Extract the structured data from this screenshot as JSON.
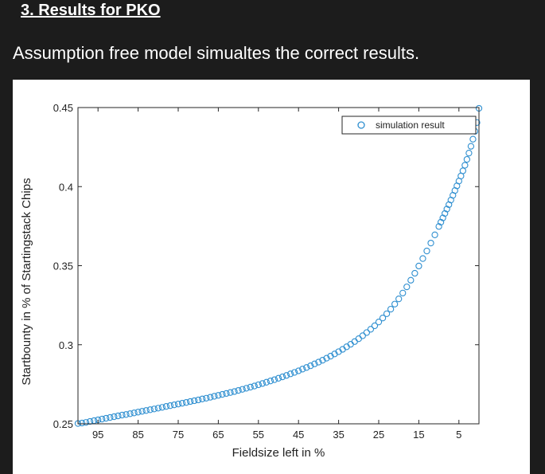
{
  "slide": {
    "title": "3. Results for PKO",
    "subtitle": "Assumption free model simualtes the correct results."
  },
  "colors": {
    "background": "#1c1c1c",
    "figure_background": "#ffffff",
    "marker": "#2f8fd0"
  },
  "chart_data": {
    "type": "scatter",
    "xlabel": "Fieldsize left in %",
    "ylabel": "Startbounty in % of Startingstack Chips",
    "xlim": [
      100,
      0
    ],
    "x_reversed": true,
    "ylim": [
      0.25,
      0.45
    ],
    "xticks": [
      95,
      85,
      75,
      65,
      55,
      45,
      35,
      25,
      15,
      5
    ],
    "yticks": [
      0.25,
      0.3,
      0.35,
      0.4,
      0.45
    ],
    "yticklabels": [
      "0.25",
      "0.3",
      "0.35",
      "0.4",
      "0.45"
    ],
    "marker": "circle-open",
    "grid": false,
    "legend": {
      "position": "top-right"
    },
    "series": [
      {
        "name": "simulation result",
        "x": [
          100,
          99,
          98,
          97,
          96,
          95,
          94,
          93,
          92,
          91,
          90,
          89,
          88,
          87,
          86,
          85,
          84,
          83,
          82,
          81,
          80,
          79,
          78,
          77,
          76,
          75,
          74,
          73,
          72,
          71,
          70,
          69,
          68,
          67,
          66,
          65,
          64,
          63,
          62,
          61,
          60,
          59,
          58,
          57,
          56,
          55,
          54,
          53,
          52,
          51,
          50,
          49,
          48,
          47,
          46,
          45,
          44,
          43,
          42,
          41,
          40,
          39,
          38,
          37,
          36,
          35,
          34,
          33,
          32,
          31,
          30,
          29,
          28,
          27,
          26,
          25,
          24,
          23,
          22,
          21,
          20,
          19,
          18,
          17,
          16,
          15,
          14,
          13,
          12,
          11,
          10,
          9.5,
          9,
          8.5,
          8,
          7.5,
          7,
          6.5,
          6,
          5.5,
          5,
          4.5,
          4,
          3.5,
          3,
          2.5,
          2,
          1.5,
          1,
          0.5,
          0
        ],
        "y": [
          0.2502,
          0.2505,
          0.2509,
          0.2515,
          0.252,
          0.2525,
          0.253,
          0.2535,
          0.254,
          0.2545,
          0.255,
          0.2555,
          0.2559,
          0.2564,
          0.2569,
          0.2574,
          0.2579,
          0.2584,
          0.2589,
          0.2594,
          0.2599,
          0.2604,
          0.261,
          0.2615,
          0.262,
          0.2625,
          0.263,
          0.2635,
          0.2641,
          0.2646,
          0.2651,
          0.2657,
          0.2662,
          0.2668,
          0.2674,
          0.268,
          0.2686,
          0.2692,
          0.2698,
          0.2704,
          0.2711,
          0.2718,
          0.2725,
          0.2732,
          0.2739,
          0.2747,
          0.2755,
          0.2763,
          0.2771,
          0.2779,
          0.2788,
          0.2797,
          0.2806,
          0.2816,
          0.2825,
          0.2835,
          0.2846,
          0.2856,
          0.2867,
          0.2879,
          0.289,
          0.2902,
          0.2915,
          0.2928,
          0.2942,
          0.2956,
          0.2971,
          0.2987,
          0.3003,
          0.302,
          0.3038,
          0.3057,
          0.3077,
          0.3098,
          0.312,
          0.3144,
          0.3169,
          0.3196,
          0.3225,
          0.3257,
          0.329,
          0.3327,
          0.3366,
          0.3408,
          0.3452,
          0.3498,
          0.3545,
          0.3593,
          0.3643,
          0.3695,
          0.3748,
          0.3775,
          0.3802,
          0.383,
          0.3858,
          0.3886,
          0.3915,
          0.3945,
          0.3975,
          0.4005,
          0.4035,
          0.4067,
          0.41,
          0.4135,
          0.4172,
          0.4212,
          0.4255,
          0.43,
          0.435,
          0.4405,
          0.4495
        ]
      }
    ]
  }
}
